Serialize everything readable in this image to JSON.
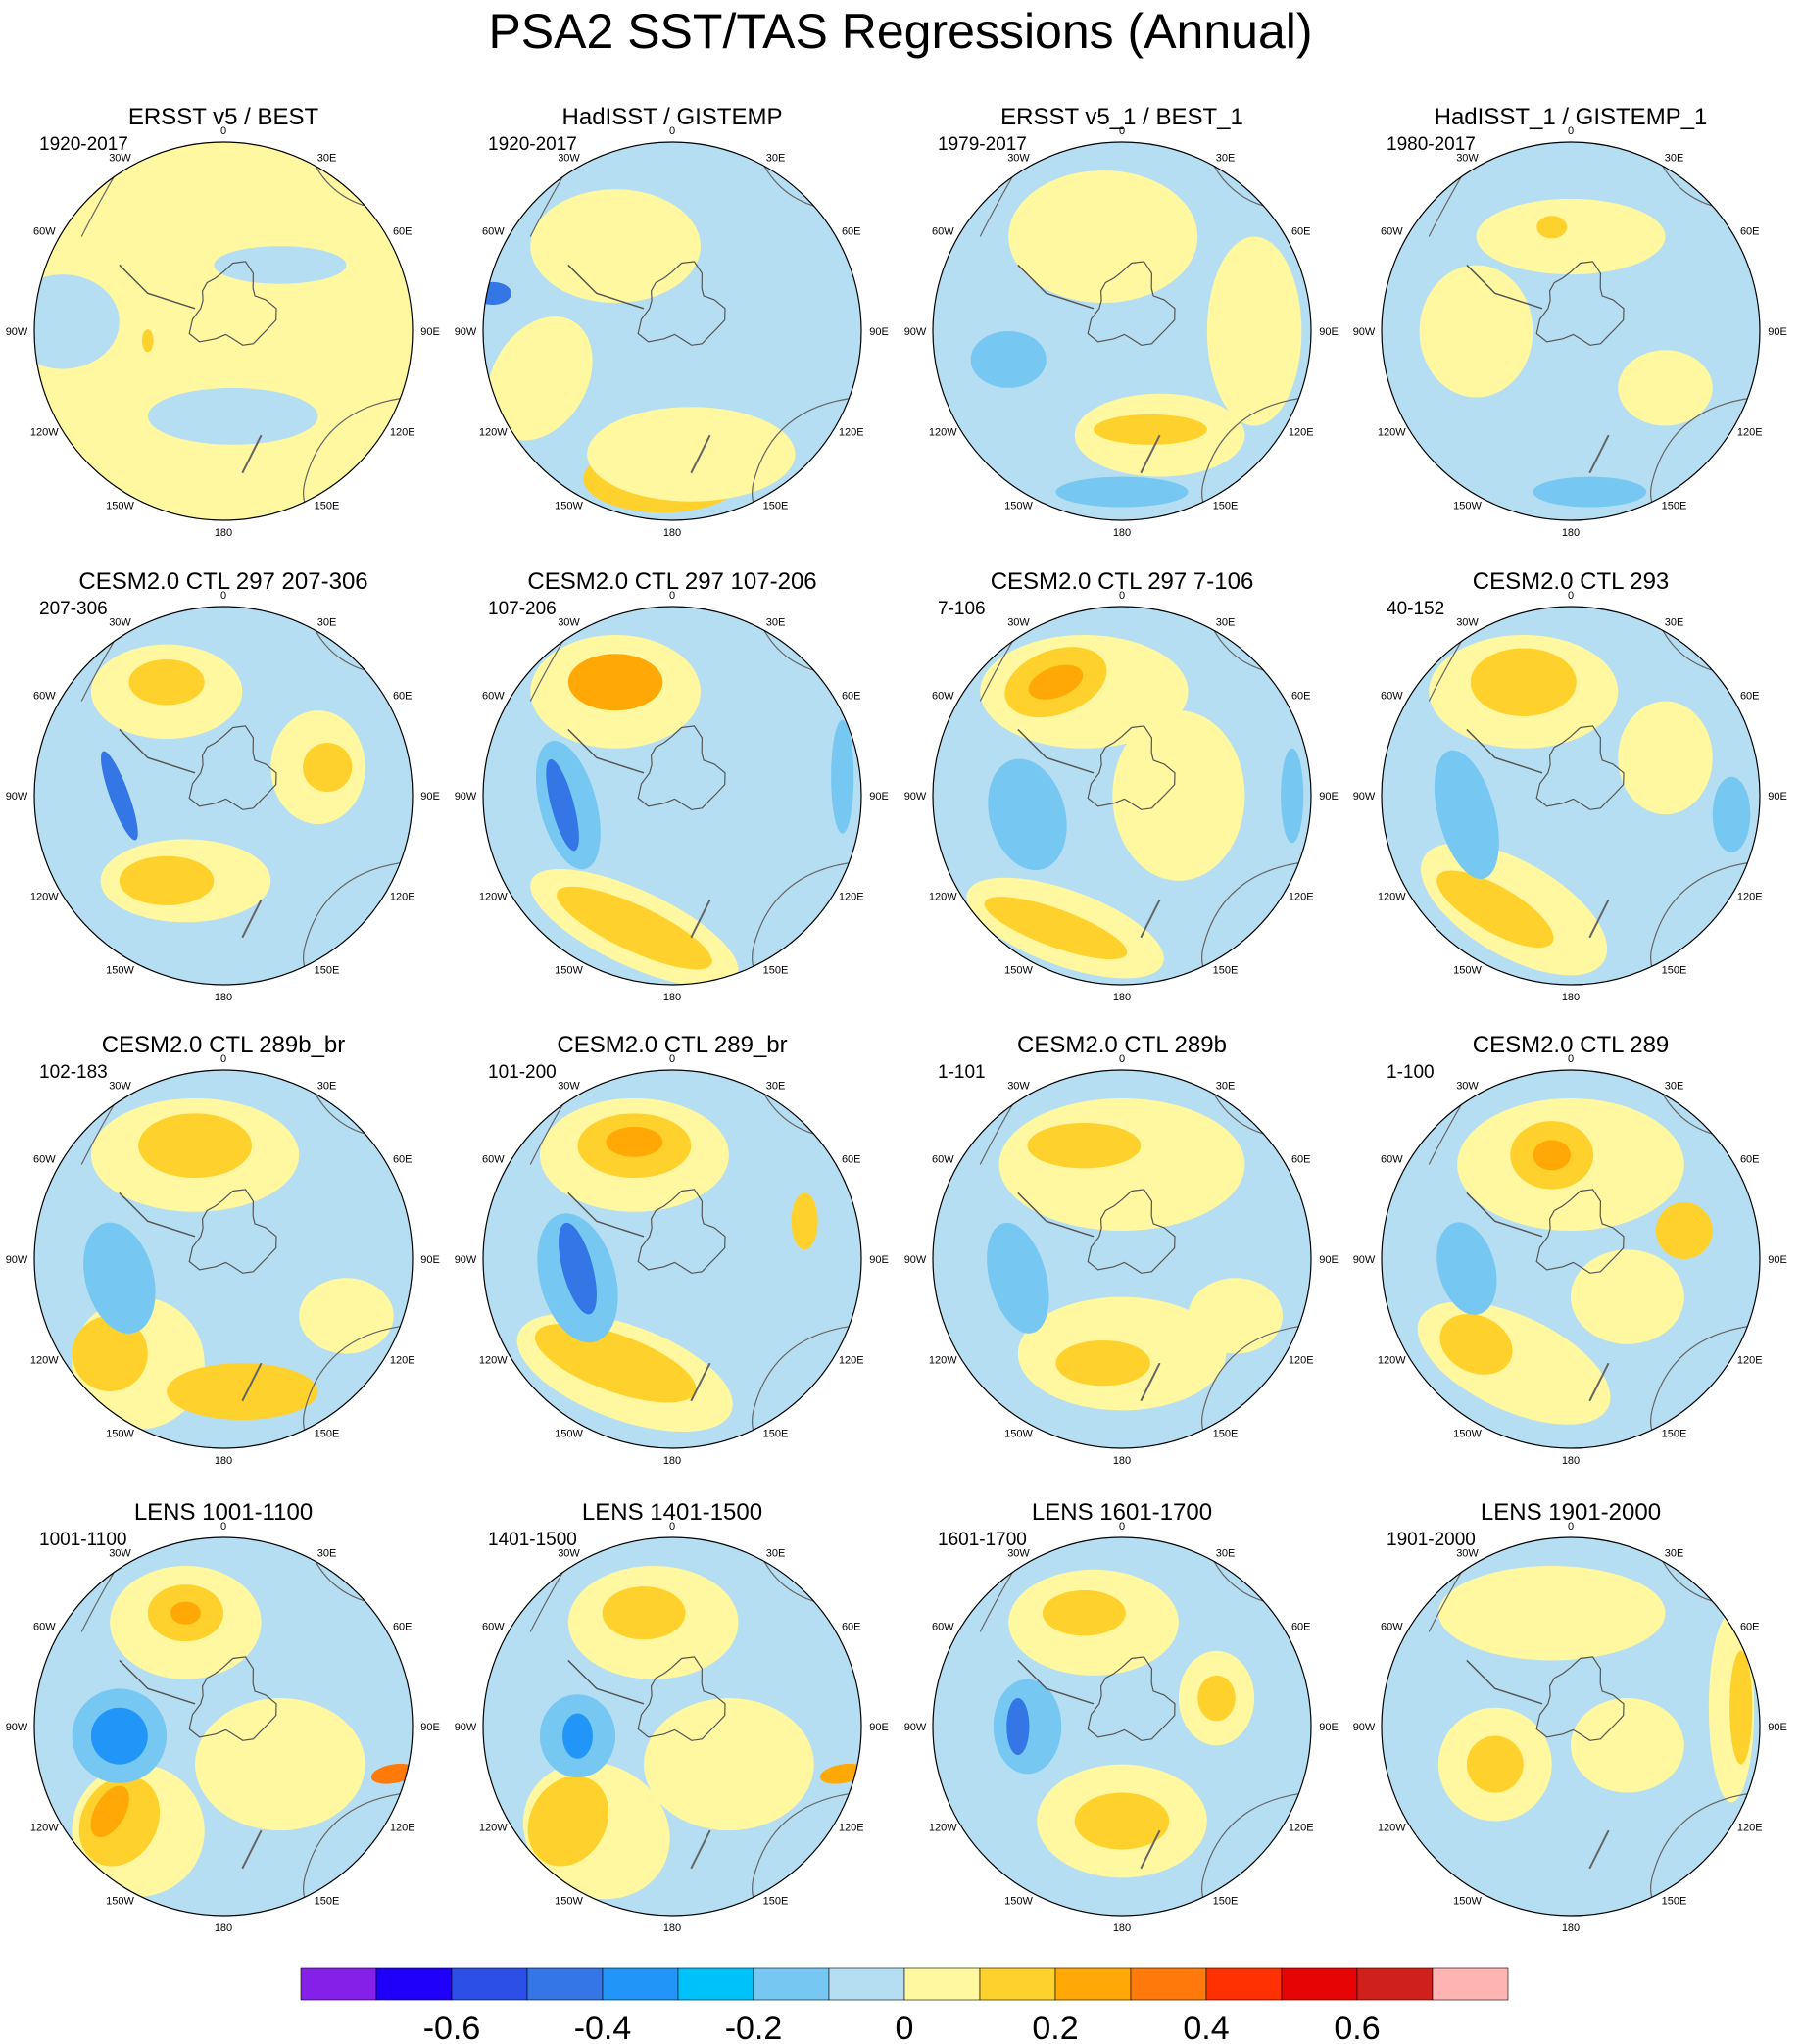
{
  "title": "PSA2 SST/TAS Regressions (Annual)",
  "lon_labels": {
    "0": "0",
    "30E": "30E",
    "60E": "60E",
    "90E": "90E",
    "120E": "120E",
    "150E": "150E",
    "180": "180",
    "150W": "150W",
    "120W": "120W",
    "90W": "90W",
    "60W": "60W",
    "30W": "30W"
  },
  "panels": [
    {
      "title": "ERSST v5 / BEST",
      "period": "1920-2017"
    },
    {
      "title": "HadISST / GISTEMP",
      "period": "1920-2017"
    },
    {
      "title": "ERSST v5_1 / BEST_1",
      "period": "1979-2017"
    },
    {
      "title": "HadISST_1 / GISTEMP_1",
      "period": "1980-2017"
    },
    {
      "title": "CESM2.0 CTL 297 207-306",
      "period": "207-306"
    },
    {
      "title": "CESM2.0 CTL 297 107-206",
      "period": "107-206"
    },
    {
      "title": "CESM2.0 CTL 297 7-106",
      "period": "7-106"
    },
    {
      "title": "CESM2.0 CTL 293",
      "period": "40-152"
    },
    {
      "title": "CESM2.0 CTL 289b_br",
      "period": "102-183"
    },
    {
      "title": "CESM2.0 CTL 289_br",
      "period": "101-200"
    },
    {
      "title": "CESM2.0 CTL 289b",
      "period": "1-101"
    },
    {
      "title": "CESM2.0 CTL 289",
      "period": "1-100"
    },
    {
      "title": "LENS 1001-1100",
      "period": "1001-1100"
    },
    {
      "title": "LENS 1401-1500",
      "period": "1401-1500"
    },
    {
      "title": "LENS 1601-1700",
      "period": "1601-1700"
    },
    {
      "title": "LENS 1901-2000",
      "period": "1901-2000"
    }
  ],
  "colorbar": {
    "colors": [
      "#8420e8",
      "#1e00fa",
      "#2c4fe8",
      "#3476e6",
      "#2196f8",
      "#00c2fa",
      "#76c8f2",
      "#b6def2",
      "#fff8a0",
      "#ffd12c",
      "#ffa806",
      "#ff7a0a",
      "#ff3002",
      "#e60404",
      "#d0201c",
      "#ffb4b4"
    ],
    "tick_labels": [
      "-0.6",
      "-0.4",
      "-0.2",
      "0",
      "0.2",
      "0.4",
      "0.6"
    ]
  }
}
